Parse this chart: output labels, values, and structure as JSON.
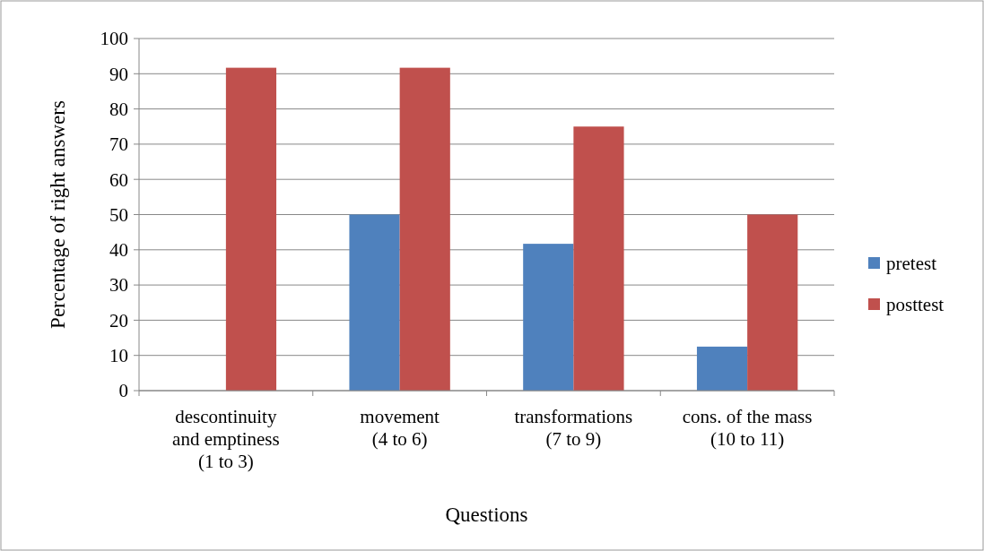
{
  "chart_data": {
    "type": "bar",
    "xlabel": "Questions",
    "ylabel": "Percentage of right answers",
    "categories": [
      "descontinuity\nand emptiness\n(1 to 3)",
      "movement\n(4 to 6)",
      "transformations\n(7 to 9)",
      "cons. of the mass\n(10 to 11)"
    ],
    "series": [
      {
        "name": "pretest",
        "color": "#4f81bd",
        "values": [
          0,
          50,
          41.7,
          12.5
        ]
      },
      {
        "name": "posttest",
        "color": "#c0504d",
        "values": [
          91.7,
          91.7,
          75,
          50
        ]
      }
    ],
    "ylim": [
      0,
      100
    ],
    "yticks": [
      0,
      10,
      20,
      30,
      40,
      50,
      60,
      70,
      80,
      90,
      100
    ],
    "grid": "y",
    "legend": "right"
  }
}
